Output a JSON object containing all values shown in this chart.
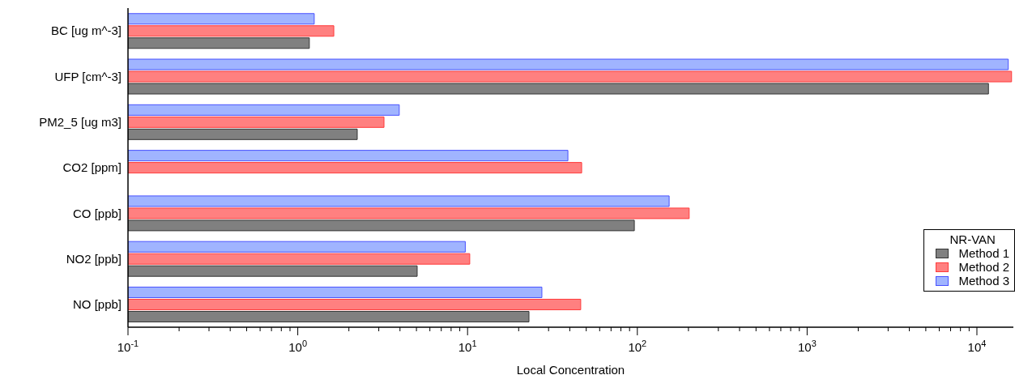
{
  "chart_data": {
    "type": "bar",
    "orientation": "horizontal",
    "log": "x",
    "xlabel": "Local Concentration",
    "legend_title": "NR-VAN",
    "legend": "bottom right",
    "categories": [
      "BC [ug m^-3]",
      "UFP [cm^-3]",
      "PM2_5 [ug m3]",
      "CO2 [ppm]",
      "CO [ppb]",
      "NO2 [ppb]",
      "NO [ppb]"
    ],
    "series": [
      {
        "name": "Method 1",
        "color": "#808080",
        "values": [
          1.17,
          11700,
          2.24,
          null,
          96,
          5.05,
          23
        ]
      },
      {
        "name": "Method 2",
        "color": "#ff8080",
        "values": [
          1.63,
          16000,
          3.22,
          47,
          202,
          10.3,
          46.4
        ]
      },
      {
        "name": "Method 3",
        "color": "#a0b4ff",
        "values": [
          1.25,
          15300,
          3.96,
          39,
          154,
          9.7,
          27.4
        ]
      }
    ],
    "xlim": [
      0.1,
      16400
    ],
    "xticks": [
      {
        "value": 0.1,
        "label": "10$^{-1}$"
      },
      {
        "value": 0.2,
        "label": null
      },
      {
        "value": 0.3,
        "label": null
      },
      {
        "value": 0.4,
        "label": null
      },
      {
        "value": 0.5,
        "label": null
      },
      {
        "value": 0.6,
        "label": null
      },
      {
        "value": 0.7,
        "label": null
      },
      {
        "value": 0.8,
        "label": null
      },
      {
        "value": 0.9,
        "label": null
      },
      {
        "value": 1,
        "label": "10$^{0}$"
      },
      {
        "value": 2,
        "label": null
      },
      {
        "value": 3,
        "label": null
      },
      {
        "value": 4,
        "label": null
      },
      {
        "value": 5,
        "label": null
      },
      {
        "value": 6,
        "label": null
      },
      {
        "value": 7,
        "label": null
      },
      {
        "value": 8,
        "label": null
      },
      {
        "value": 9,
        "label": null
      },
      {
        "value": 10,
        "label": "10$^{1}$"
      },
      {
        "value": 20,
        "label": null
      },
      {
        "value": 30,
        "label": null
      },
      {
        "value": 40,
        "label": null
      },
      {
        "value": 50,
        "label": null
      },
      {
        "value": 60,
        "label": null
      },
      {
        "value": 70,
        "label": null
      },
      {
        "value": 80,
        "label": null
      },
      {
        "value": 90,
        "label": null
      },
      {
        "value": 100,
        "label": "10$^{2}$"
      },
      {
        "value": 200,
        "label": null
      },
      {
        "value": 300,
        "label": null
      },
      {
        "value": 400,
        "label": null
      },
      {
        "value": 500,
        "label": null
      },
      {
        "value": 600,
        "label": null
      },
      {
        "value": 700,
        "label": null
      },
      {
        "value": 800,
        "label": null
      },
      {
        "value": 900,
        "label": null
      },
      {
        "value": 1000,
        "label": "10$^{3}$"
      },
      {
        "value": 2000,
        "label": null
      },
      {
        "value": 3000,
        "label": null
      },
      {
        "value": 4000,
        "label": null
      },
      {
        "value": 5000,
        "label": null
      },
      {
        "value": 6000,
        "label": null
      },
      {
        "value": 7000,
        "label": null
      },
      {
        "value": 8000,
        "label": null
      },
      {
        "value": 9000,
        "label": null
      },
      {
        "value": 10000,
        "label": "10$^{4}$"
      }
    ]
  }
}
